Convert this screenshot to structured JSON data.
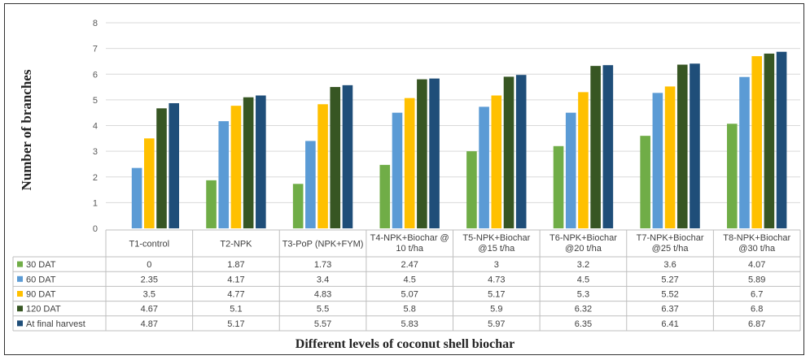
{
  "chart_data": {
    "type": "bar",
    "ylabel": "Number of branches",
    "xlabel": "Different levels of coconut shell biochar",
    "ylim": [
      0,
      8
    ],
    "yticks": [
      0,
      1,
      2,
      3,
      4,
      5,
      6,
      7,
      8
    ],
    "grid": true,
    "legend": "data-table",
    "categories": [
      [
        "T1-control"
      ],
      [
        "T2-NPK"
      ],
      [
        "T3-PoP (NPK+FYM)"
      ],
      [
        "T4-NPK+Biochar @",
        "10 t/ha"
      ],
      [
        "T5-NPK+Biochar",
        "@15 t/ha"
      ],
      [
        "T6-NPK+Biochar",
        "@20 t/ha"
      ],
      [
        "T7-NPK+Biochar",
        "@25 t/ha"
      ],
      [
        "T8-NPK+Biochar",
        "@30 t/ha"
      ]
    ],
    "series": [
      {
        "name": "30 DAT",
        "color": "#70ad47",
        "values": [
          0,
          1.87,
          1.73,
          2.47,
          3,
          3.2,
          3.6,
          4.07
        ]
      },
      {
        "name": "60 DAT",
        "color": "#5b9bd5",
        "values": [
          2.35,
          4.17,
          3.4,
          4.5,
          4.73,
          4.5,
          5.27,
          5.89
        ]
      },
      {
        "name": "90 DAT",
        "color": "#ffc000",
        "values": [
          3.5,
          4.77,
          4.83,
          5.07,
          5.17,
          5.3,
          5.52,
          6.7
        ]
      },
      {
        "name": "120 DAT",
        "color": "#375623",
        "values": [
          4.67,
          5.1,
          5.5,
          5.8,
          5.9,
          6.32,
          6.37,
          6.8
        ]
      },
      {
        "name": "At final harvest",
        "color": "#1f4e79",
        "values": [
          4.87,
          5.17,
          5.57,
          5.83,
          5.97,
          6.35,
          6.41,
          6.87
        ]
      }
    ]
  }
}
